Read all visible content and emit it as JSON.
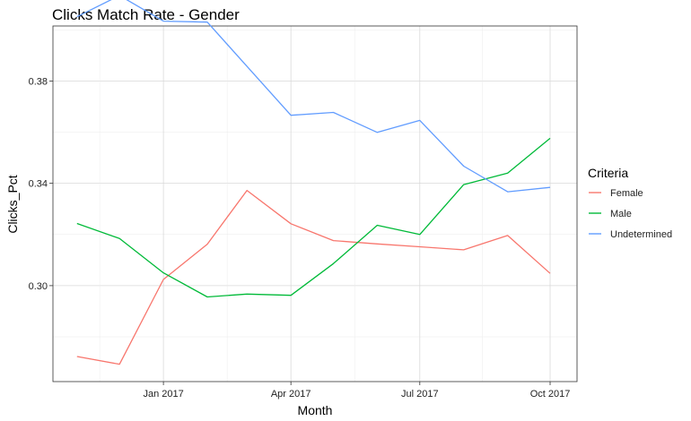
{
  "chart_data": {
    "type": "line",
    "title": "Clicks Match Rate - Gender",
    "xlabel": "Month",
    "ylabel": "Clicks_Pct",
    "x": [
      "2016-11-01",
      "2016-12-01",
      "2017-01-01",
      "2017-02-01",
      "2017-03-01",
      "2017-04-01",
      "2017-05-01",
      "2017-06-01",
      "2017-07-01",
      "2017-08-01",
      "2017-09-01",
      "2017-10-01"
    ],
    "xlim": [
      "2016-10-15",
      "2017-10-20"
    ],
    "ylim": [
      0.2625,
      0.4015
    ],
    "x_ticks": [
      {
        "value": "2017-01-01",
        "label": "Jan 2017"
      },
      {
        "value": "2017-04-01",
        "label": "Apr 2017"
      },
      {
        "value": "2017-07-01",
        "label": "Jul 2017"
      },
      {
        "value": "2017-10-01",
        "label": "Oct 2017"
      }
    ],
    "y_ticks": [
      {
        "value": 0.3,
        "label": "0.30"
      },
      {
        "value": 0.34,
        "label": "0.34"
      },
      {
        "value": 0.38,
        "label": "0.38"
      }
    ],
    "grid": true,
    "legend": {
      "title": "Criteria",
      "position": "right"
    },
    "series": [
      {
        "name": "Female",
        "color": "#F8766D",
        "values": [
          0.2723,
          0.2693,
          0.3024,
          0.3162,
          0.3372,
          0.3242,
          0.3176,
          0.3163,
          0.3152,
          0.314,
          0.3196,
          0.3048
        ]
      },
      {
        "name": "Male",
        "color": "#00BA38",
        "values": [
          0.3243,
          0.3184,
          0.305,
          0.2956,
          0.2967,
          0.2962,
          0.3086,
          0.3236,
          0.32,
          0.3395,
          0.344,
          0.3576
        ]
      },
      {
        "name": "Undetermined",
        "color": "#619CFF",
        "values": [
          0.4051,
          0.4134,
          0.4034,
          0.403,
          0.3857,
          0.3666,
          0.3677,
          0.3599,
          0.3646,
          0.3467,
          0.3367,
          0.3384
        ]
      }
    ]
  }
}
